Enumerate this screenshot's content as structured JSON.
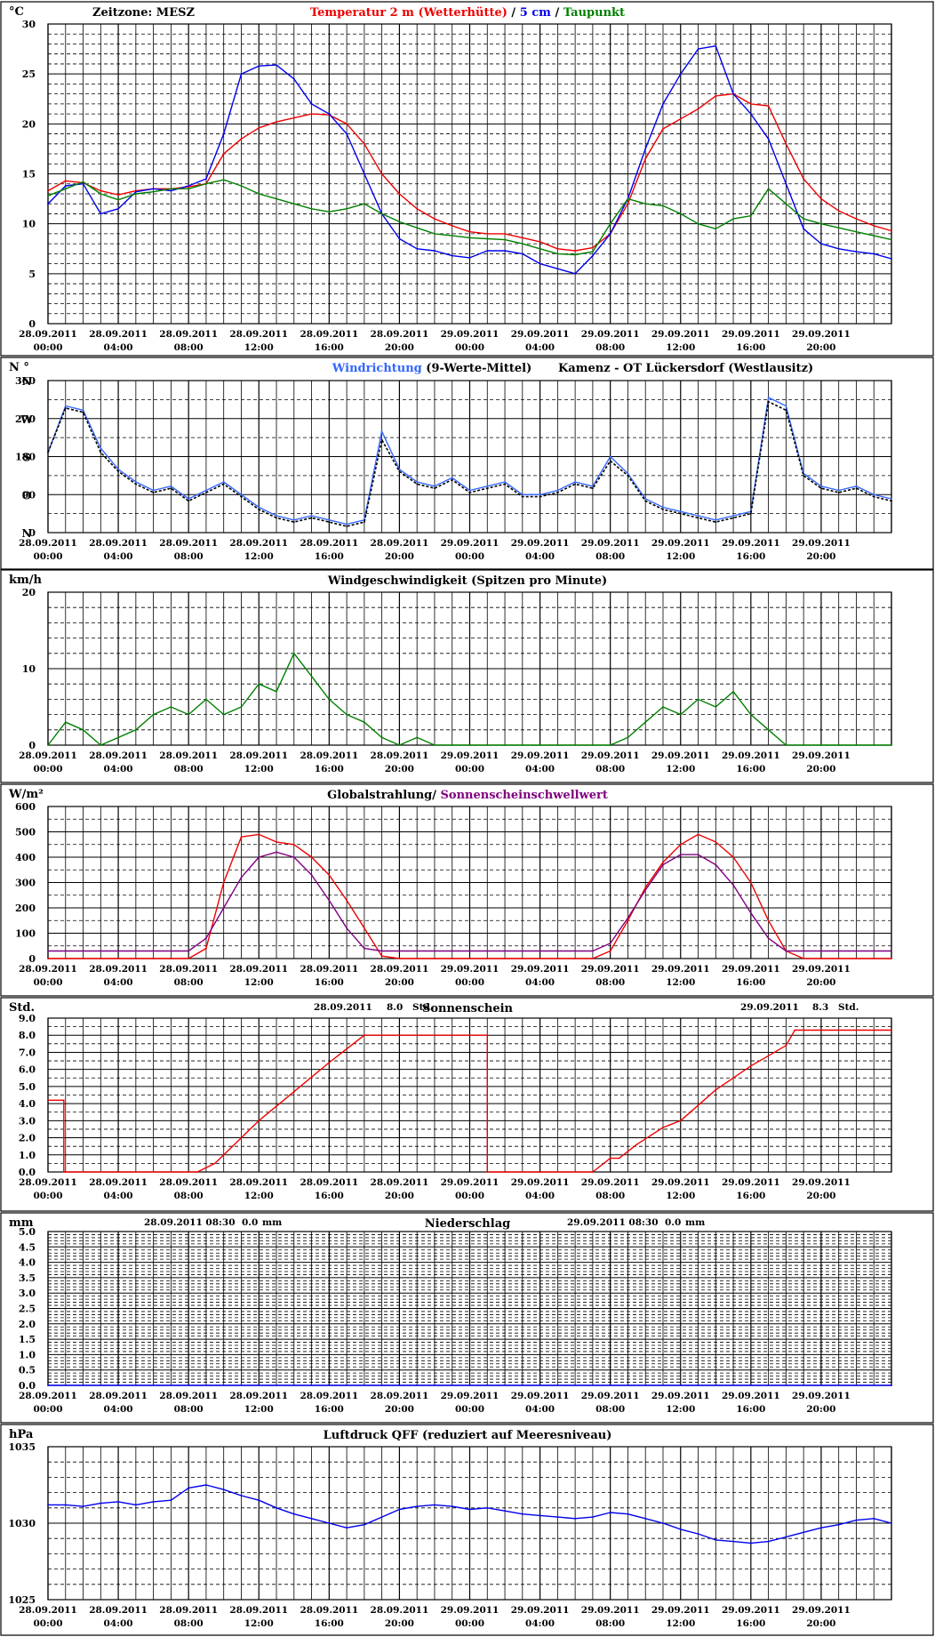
{
  "x_ticks": [
    {
      "date": "28.09.2011",
      "time": "00:00"
    },
    {
      "date": "28.09.2011",
      "time": "04:00"
    },
    {
      "date": "28.09.2011",
      "time": "08:00"
    },
    {
      "date": "28.09.2011",
      "time": "12:00"
    },
    {
      "date": "28.09.2011",
      "time": "16:00"
    },
    {
      "date": "28.09.2011",
      "time": "20:00"
    },
    {
      "date": "29.09.2011",
      "time": "00:00"
    },
    {
      "date": "29.09.2011",
      "time": "04:00"
    },
    {
      "date": "29.09.2011",
      "time": "08:00"
    },
    {
      "date": "29.09.2011",
      "time": "12:00"
    },
    {
      "date": "29.09.2011",
      "time": "16:00"
    },
    {
      "date": "29.09.2011",
      "time": "20:00"
    }
  ],
  "chart_data": [
    {
      "id": "temperature",
      "type": "line",
      "unit": "°C",
      "ylim": [
        0,
        30
      ],
      "yticks": [
        "0",
        "5",
        "10",
        "15",
        "20",
        "25",
        "30"
      ],
      "header_left": "Zeitzone: MESZ",
      "title_parts": [
        {
          "text": "Temperatur 2 m (Wetterhütte)",
          "color": "#ee0000"
        },
        {
          "text": "  /  ",
          "color": "#000000"
        },
        {
          "text": "5 cm",
          "color": "#0000ee"
        },
        {
          "text": " / ",
          "color": "#000000"
        },
        {
          "text": "Taupunkt",
          "color": "#008000"
        }
      ],
      "x_hours": [
        0,
        1,
        2,
        3,
        4,
        5,
        6,
        7,
        8,
        9,
        10,
        11,
        12,
        13,
        14,
        15,
        16,
        17,
        18,
        19,
        20,
        21,
        22,
        23,
        24,
        25,
        26,
        27,
        28,
        29,
        30,
        31,
        32,
        33,
        34,
        35,
        36,
        37,
        38,
        39,
        40,
        41,
        42,
        43,
        44,
        45,
        46,
        47,
        48
      ],
      "series": [
        {
          "color": "#ee0000",
          "values": [
            13.3,
            14.3,
            14.1,
            13.3,
            12.9,
            13.3,
            13.5,
            13.5,
            13.7,
            14.0,
            17.0,
            18.5,
            19.6,
            20.2,
            20.6,
            21.0,
            20.9,
            20.0,
            18.0,
            15.0,
            13.0,
            11.5,
            10.5,
            9.8,
            9.2,
            9.0,
            9.0,
            8.6,
            8.2,
            7.5,
            7.3,
            7.6,
            9.0,
            12.0,
            16.5,
            19.5,
            20.5,
            21.5,
            22.8,
            23.0,
            22.0,
            21.8,
            18.0,
            14.5,
            12.5,
            11.3,
            10.5,
            9.8,
            9.3
          ]
        },
        {
          "color": "#0000ee",
          "values": [
            12.0,
            13.8,
            14.0,
            11.0,
            11.5,
            13.2,
            13.5,
            13.3,
            13.8,
            14.5,
            19.0,
            25.0,
            25.8,
            25.9,
            24.5,
            22.0,
            21.0,
            19.0,
            15.0,
            11.0,
            8.5,
            7.5,
            7.3,
            6.8,
            6.6,
            7.3,
            7.3,
            7.0,
            6.0,
            5.5,
            5.0,
            6.8,
            9.0,
            12.5,
            17.5,
            22.0,
            25.0,
            27.5,
            27.8,
            23.0,
            21.0,
            18.5,
            14.0,
            9.5,
            8.0,
            7.5,
            7.2,
            7.0,
            6.5
          ]
        },
        {
          "color": "#008000",
          "values": [
            12.8,
            13.5,
            14.2,
            13.0,
            12.4,
            13.0,
            13.2,
            13.5,
            13.5,
            14.0,
            14.4,
            13.8,
            13.0,
            12.5,
            12.0,
            11.5,
            11.2,
            11.5,
            12.0,
            11.0,
            10.2,
            9.6,
            9.0,
            8.8,
            8.6,
            8.5,
            8.4,
            8.0,
            7.5,
            7.0,
            6.9,
            7.2,
            10.0,
            12.5,
            12.0,
            11.8,
            11.0,
            10.0,
            9.5,
            10.5,
            10.8,
            13.5,
            12.0,
            10.5,
            10.0,
            9.6,
            9.2,
            8.8,
            8.4
          ]
        }
      ]
    },
    {
      "id": "wind_direction",
      "type": "line",
      "unit": "N °",
      "ylim": [
        0,
        360
      ],
      "yticks": [
        "0",
        "90",
        "180",
        "270",
        "360"
      ],
      "ydir_labels": [
        "N",
        "O",
        "S",
        "W",
        "N"
      ],
      "title_parts": [
        {
          "text": "Windrichtung",
          "color": "#3366ff"
        },
        {
          "text": " (9-Werte-Mittel)",
          "color": "#000000"
        }
      ],
      "subtitle": "Kamenz - OT Lückersdorf (Westlausitz)",
      "x_hours": [
        0,
        1,
        2,
        3,
        4,
        5,
        6,
        7,
        8,
        9,
        10,
        11,
        12,
        13,
        14,
        15,
        16,
        17,
        18,
        19,
        20,
        21,
        22,
        23,
        24,
        25,
        26,
        27,
        28,
        29,
        30,
        31,
        32,
        33,
        34,
        35,
        36,
        37,
        38,
        39,
        40,
        41,
        42,
        43,
        44,
        45,
        46,
        47,
        48
      ],
      "series": [
        {
          "color": "#3366ff",
          "name": "Windrichtung",
          "values": [
            190,
            300,
            290,
            200,
            150,
            120,
            100,
            110,
            80,
            100,
            120,
            90,
            60,
            40,
            30,
            40,
            30,
            20,
            30,
            240,
            150,
            120,
            110,
            130,
            100,
            110,
            120,
            90,
            90,
            100,
            120,
            110,
            180,
            140,
            80,
            60,
            50,
            40,
            30,
            40,
            50,
            320,
            300,
            140,
            110,
            100,
            110,
            90,
            80
          ]
        },
        {
          "color": "#000000",
          "name": "9-Werte-Mittel",
          "values": [
            190,
            295,
            285,
            190,
            145,
            115,
            95,
            105,
            75,
            95,
            115,
            85,
            55,
            35,
            25,
            35,
            25,
            15,
            25,
            220,
            145,
            115,
            105,
            125,
            95,
            105,
            115,
            85,
            85,
            95,
            115,
            105,
            170,
            135,
            75,
            55,
            45,
            35,
            25,
            35,
            45,
            310,
            290,
            135,
            105,
            95,
            105,
            85,
            75
          ]
        }
      ]
    },
    {
      "id": "wind_speed",
      "type": "line",
      "unit": "km/h",
      "ylim": [
        0,
        20
      ],
      "yticks": [
        "0",
        "10",
        "20"
      ],
      "title": "Windgeschwindigkeit (Spitzen pro Minute)",
      "x_hours": [
        0,
        1,
        2,
        3,
        4,
        5,
        6,
        7,
        8,
        9,
        10,
        11,
        12,
        13,
        14,
        15,
        16,
        17,
        18,
        19,
        20,
        21,
        22,
        23,
        24,
        25,
        26,
        27,
        28,
        29,
        30,
        31,
        32,
        33,
        34,
        35,
        36,
        37,
        38,
        39,
        40,
        41,
        42,
        43,
        44,
        45,
        46,
        47,
        48
      ],
      "series": [
        {
          "color": "#008000",
          "values": [
            0,
            3,
            2,
            0,
            1,
            2,
            4,
            5,
            4,
            6,
            4,
            5,
            8,
            7,
            12,
            9,
            6,
            4,
            3,
            1,
            0,
            1,
            0,
            0,
            0,
            0,
            0,
            0,
            0,
            0,
            0,
            0,
            0,
            1,
            3,
            5,
            4,
            6,
            5,
            7,
            4,
            2,
            0,
            0,
            0,
            0,
            0,
            0,
            0
          ]
        }
      ]
    },
    {
      "id": "radiation",
      "type": "line",
      "unit": "W/m²",
      "ylim": [
        0,
        600
      ],
      "yticks": [
        "0",
        "100",
        "200",
        "300",
        "400",
        "500",
        "600"
      ],
      "title_parts": [
        {
          "text": "Globalstrahlung/ ",
          "color": "#000000"
        },
        {
          "text": "Sonnenscheinschwellwert",
          "color": "#800080"
        }
      ],
      "x_hours": [
        0,
        1,
        2,
        3,
        4,
        5,
        6,
        7,
        8,
        9,
        10,
        11,
        12,
        13,
        14,
        15,
        16,
        17,
        18,
        19,
        20,
        21,
        22,
        23,
        24,
        25,
        26,
        27,
        28,
        29,
        30,
        31,
        32,
        33,
        34,
        35,
        36,
        37,
        38,
        39,
        40,
        41,
        42,
        43,
        44,
        45,
        46,
        47,
        48
      ],
      "series": [
        {
          "color": "#ee0000",
          "values": [
            0,
            0,
            0,
            0,
            0,
            0,
            0,
            0,
            0,
            40,
            300,
            480,
            490,
            460,
            450,
            400,
            330,
            230,
            120,
            10,
            0,
            0,
            0,
            0,
            0,
            0,
            0,
            0,
            0,
            0,
            0,
            0,
            30,
            150,
            280,
            380,
            450,
            490,
            460,
            400,
            300,
            150,
            30,
            0,
            0,
            0,
            0,
            0,
            0
          ]
        },
        {
          "color": "#800080",
          "values": [
            30,
            30,
            30,
            30,
            30,
            30,
            30,
            30,
            30,
            80,
            200,
            320,
            400,
            420,
            400,
            330,
            230,
            120,
            40,
            30,
            30,
            30,
            30,
            30,
            30,
            30,
            30,
            30,
            30,
            30,
            30,
            30,
            60,
            160,
            270,
            370,
            410,
            410,
            370,
            290,
            180,
            80,
            30,
            30,
            30,
            30,
            30,
            30,
            30
          ]
        }
      ]
    },
    {
      "id": "sunshine",
      "type": "line",
      "unit": "Std.",
      "ylim": [
        0,
        9
      ],
      "yticks": [
        "0.0",
        "1.0",
        "2.0",
        "3.0",
        "4.0",
        "5.0",
        "6.0",
        "7.0",
        "8.0",
        "9.0"
      ],
      "title": "Sonnenschein",
      "summaries": [
        {
          "date": "28.09.2011",
          "value": "8.0",
          "unit": "Std."
        },
        {
          "date": "29.09.2011",
          "value": "8.3",
          "unit": "Std."
        }
      ],
      "x_hours": [
        0,
        0.9,
        0.9,
        8.5,
        9.5,
        10.5,
        12,
        14,
        16,
        18,
        19,
        20,
        22,
        24,
        25,
        25,
        26,
        28,
        31,
        32,
        32.5,
        33.5,
        35,
        36,
        38,
        40,
        42,
        42.5,
        44,
        46,
        48
      ],
      "series": [
        {
          "color": "#ee0000",
          "values": [
            4.2,
            4.2,
            0,
            0,
            0.5,
            1.5,
            3.0,
            4.7,
            6.4,
            8.0,
            8.0,
            8.0,
            8.0,
            8.0,
            8.0,
            0,
            0,
            0,
            0,
            0.8,
            0.8,
            1.6,
            2.6,
            3.0,
            4.8,
            6.2,
            7.4,
            8.3,
            8.3,
            8.3,
            8.3
          ]
        }
      ]
    },
    {
      "id": "precipitation",
      "type": "line",
      "unit": "mm",
      "ylim": [
        0,
        5
      ],
      "yticks": [
        "0.0",
        "0.5",
        "1.0",
        "1.5",
        "2.0",
        "2.5",
        "3.0",
        "3.5",
        "4.0",
        "4.5",
        "5.0"
      ],
      "title": "Niederschlag",
      "summaries": [
        {
          "date": "28.09.2011 08:30",
          "value": "0.0",
          "unit": "mm"
        },
        {
          "date": "29.09.2011 08:30",
          "value": "0.0",
          "unit": "mm"
        }
      ],
      "x_hours": [
        0,
        48
      ],
      "series": [
        {
          "color": "#0000ee",
          "values": [
            0,
            0
          ]
        }
      ]
    },
    {
      "id": "pressure",
      "type": "line",
      "unit": "hPa",
      "ylim": [
        1025,
        1035
      ],
      "yticks": [
        "1025",
        "1030",
        "1035"
      ],
      "title": "Luftdruck QFF (reduziert auf Meeresniveau)",
      "x_hours": [
        0,
        1,
        2,
        3,
        4,
        5,
        6,
        7,
        8,
        9,
        10,
        11,
        12,
        13,
        14,
        15,
        16,
        17,
        18,
        19,
        20,
        21,
        22,
        23,
        24,
        25,
        26,
        27,
        28,
        29,
        30,
        31,
        32,
        33,
        34,
        35,
        36,
        37,
        38,
        39,
        40,
        41,
        42,
        43,
        44,
        45,
        46,
        47,
        48
      ],
      "series": [
        {
          "color": "#0000ee",
          "values": [
            1031.2,
            1031.2,
            1031.1,
            1031.3,
            1031.4,
            1031.2,
            1031.4,
            1031.5,
            1032.3,
            1032.5,
            1032.2,
            1031.8,
            1031.5,
            1031.0,
            1030.6,
            1030.3,
            1030.0,
            1029.7,
            1029.9,
            1030.4,
            1030.9,
            1031.1,
            1031.2,
            1031.1,
            1030.9,
            1031.0,
            1030.8,
            1030.6,
            1030.5,
            1030.4,
            1030.3,
            1030.4,
            1030.7,
            1030.6,
            1030.3,
            1030.0,
            1029.6,
            1029.3,
            1028.9,
            1028.8,
            1028.7,
            1028.8,
            1029.1,
            1029.4,
            1029.7,
            1029.9,
            1030.2,
            1030.3,
            1030.0
          ]
        }
      ]
    }
  ]
}
